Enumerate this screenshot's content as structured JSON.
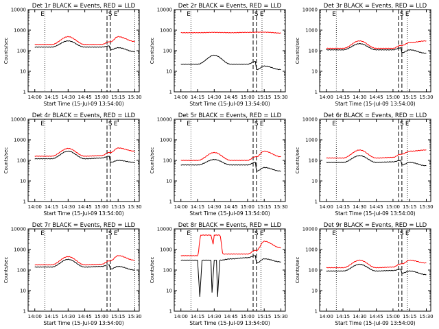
{
  "figure": {
    "xlabel": "Start Time (15-Jul-09 13:54:00)",
    "ylabel": "Counts/sec",
    "xticks": [
      "14:00",
      "14:15",
      "14:30",
      "14:45",
      "15:00",
      "15:15",
      "15:30"
    ],
    "yticks": [
      "1",
      "10",
      "100",
      "1000",
      "10000"
    ],
    "markers": [
      "E",
      "S",
      "E"
    ]
  },
  "colors": {
    "events": "#000000",
    "lld": "#ff0000"
  },
  "chart_data": [
    {
      "type": "line",
      "title": "Det 1r BLACK = Events, RED = LLD",
      "xlim": [
        "13:54",
        "15:34"
      ],
      "ylim": [
        1,
        10000
      ],
      "yscale": "log",
      "vlines_dotted": [
        "14:09",
        "15:30"
      ],
      "vlines_dashed": [
        "15:05",
        "15:08"
      ],
      "series": [
        {
          "name": "BLACK = Events",
          "points": [
            [
              "14:00",
              150
            ],
            [
              "14:15",
              150
            ],
            [
              "14:30",
              300
            ],
            [
              "14:45",
              150
            ],
            [
              "15:00",
              150
            ],
            [
              "15:07",
              170
            ],
            [
              "15:08",
              110
            ],
            [
              "15:15",
              140
            ],
            [
              "15:30",
              90
            ]
          ]
        },
        {
          "name": "RED = LLD",
          "points": [
            [
              "14:00",
              200
            ],
            [
              "14:15",
              200
            ],
            [
              "14:30",
              480
            ],
            [
              "14:45",
              200
            ],
            [
              "15:00",
              200
            ],
            [
              "15:07",
              270
            ],
            [
              "15:08",
              270
            ],
            [
              "15:15",
              480
            ],
            [
              "15:30",
              280
            ]
          ]
        }
      ]
    },
    {
      "type": "line",
      "title": "Det 2r BLACK = Events, RED = LLD",
      "xlim": [
        "13:54",
        "15:34"
      ],
      "ylim": [
        1,
        10000
      ],
      "yscale": "log",
      "vlines_dotted": [
        "14:09",
        "15:13"
      ],
      "vlines_dashed": [
        "15:05",
        "15:08"
      ],
      "series": [
        {
          "name": "BLACK = Events",
          "points": [
            [
              "14:00",
              22
            ],
            [
              "14:15",
              22
            ],
            [
              "14:30",
              60
            ],
            [
              "14:45",
              22
            ],
            [
              "15:00",
              22
            ],
            [
              "15:07",
              30
            ],
            [
              "15:08",
              12
            ],
            [
              "15:15",
              18
            ],
            [
              "15:30",
              12
            ]
          ]
        },
        {
          "name": "RED = LLD",
          "points": [
            [
              "14:00",
              750
            ],
            [
              "14:15",
              750
            ],
            [
              "14:30",
              780
            ],
            [
              "14:45",
              750
            ],
            [
              "15:00",
              780
            ],
            [
              "15:15",
              800
            ],
            [
              "15:30",
              720
            ]
          ]
        }
      ]
    },
    {
      "type": "line",
      "title": "Det 3r BLACK = Events, RED = LLD",
      "xlim": [
        "13:54",
        "15:34"
      ],
      "ylim": [
        1,
        10000
      ],
      "yscale": "log",
      "vlines_dotted": [
        "14:09",
        "15:13"
      ],
      "vlines_dashed": [
        "15:05",
        "15:08"
      ],
      "series": [
        {
          "name": "BLACK = Events",
          "points": [
            [
              "14:00",
              110
            ],
            [
              "14:15",
              110
            ],
            [
              "14:30",
              220
            ],
            [
              "14:45",
              110
            ],
            [
              "15:00",
              110
            ],
            [
              "15:07",
              140
            ],
            [
              "15:08",
              80
            ],
            [
              "15:15",
              110
            ],
            [
              "15:30",
              75
            ]
          ]
        },
        {
          "name": "RED = LLD",
          "points": [
            [
              "14:00",
              130
            ],
            [
              "14:15",
              130
            ],
            [
              "14:30",
              300
            ],
            [
              "14:45",
              130
            ],
            [
              "15:00",
              130
            ],
            [
              "15:07",
              180
            ],
            [
              "15:08",
              180
            ],
            [
              "15:15",
              250
            ],
            [
              "15:30",
              300
            ]
          ]
        }
      ]
    },
    {
      "type": "line",
      "title": "Det 4r BLACK = Events, RED = LLD",
      "xlim": [
        "13:54",
        "15:34"
      ],
      "ylim": [
        1,
        10000
      ],
      "yscale": "log",
      "vlines_dotted": [
        "14:09",
        "15:30"
      ],
      "vlines_dashed": [
        "15:05",
        "15:08"
      ],
      "series": [
        {
          "name": "BLACK = Events",
          "points": [
            [
              "14:00",
              120
            ],
            [
              "14:15",
              120
            ],
            [
              "14:30",
              280
            ],
            [
              "14:45",
              120
            ],
            [
              "15:00",
              130
            ],
            [
              "15:07",
              160
            ],
            [
              "15:08",
              80
            ],
            [
              "15:15",
              100
            ],
            [
              "15:30",
              80
            ]
          ]
        },
        {
          "name": "RED = LLD",
          "points": [
            [
              "14:00",
              160
            ],
            [
              "14:15",
              160
            ],
            [
              "14:30",
              380
            ],
            [
              "14:45",
              160
            ],
            [
              "15:00",
              170
            ],
            [
              "15:07",
              240
            ],
            [
              "15:08",
              240
            ],
            [
              "15:15",
              400
            ],
            [
              "15:30",
              280
            ]
          ]
        }
      ]
    },
    {
      "type": "line",
      "title": "Det 5r BLACK = Events, RED = LLD",
      "xlim": [
        "13:54",
        "15:34"
      ],
      "ylim": [
        1,
        10000
      ],
      "yscale": "log",
      "vlines_dotted": [
        "14:09",
        "15:12"
      ],
      "vlines_dashed": [
        "15:05",
        "15:08"
      ],
      "series": [
        {
          "name": "BLACK = Events",
          "points": [
            [
              "14:00",
              60
            ],
            [
              "14:15",
              60
            ],
            [
              "14:30",
              110
            ],
            [
              "14:45",
              60
            ],
            [
              "15:00",
              60
            ],
            [
              "15:07",
              80
            ],
            [
              "15:08",
              30
            ],
            [
              "15:15",
              45
            ],
            [
              "15:30",
              30
            ]
          ]
        },
        {
          "name": "RED = LLD",
          "points": [
            [
              "14:00",
              100
            ],
            [
              "14:15",
              100
            ],
            [
              "14:30",
              240
            ],
            [
              "14:45",
              100
            ],
            [
              "15:00",
              100
            ],
            [
              "15:07",
              150
            ],
            [
              "15:08",
              150
            ],
            [
              "15:15",
              280
            ],
            [
              "15:30",
              150
            ]
          ]
        }
      ]
    },
    {
      "type": "line",
      "title": "Det 6r BLACK = Events, RED = LLD",
      "xlim": [
        "13:54",
        "15:34"
      ],
      "ylim": [
        1,
        10000
      ],
      "yscale": "log",
      "vlines_dotted": [
        "14:09",
        "15:13"
      ],
      "vlines_dashed": [
        "15:05",
        "15:08"
      ],
      "series": [
        {
          "name": "BLACK = Events",
          "points": [
            [
              "14:00",
              80
            ],
            [
              "14:15",
              80
            ],
            [
              "14:30",
              170
            ],
            [
              "14:45",
              80
            ],
            [
              "15:00",
              85
            ],
            [
              "15:07",
              100
            ],
            [
              "15:08",
              60
            ],
            [
              "15:15",
              80
            ],
            [
              "15:30",
              55
            ]
          ]
        },
        {
          "name": "RED = LLD",
          "points": [
            [
              "14:00",
              130
            ],
            [
              "14:15",
              130
            ],
            [
              "14:30",
              320
            ],
            [
              "14:45",
              130
            ],
            [
              "15:00",
              140
            ],
            [
              "15:07",
              200
            ],
            [
              "15:08",
              200
            ],
            [
              "15:15",
              280
            ],
            [
              "15:30",
              320
            ]
          ]
        }
      ]
    },
    {
      "type": "line",
      "title": "Det 7r BLACK = Events, RED = LLD",
      "xlim": [
        "13:54",
        "15:34"
      ],
      "ylim": [
        1,
        10000
      ],
      "yscale": "log",
      "vlines_dotted": [
        "14:09",
        "15:30"
      ],
      "vlines_dashed": [
        "15:05",
        "15:08"
      ],
      "series": [
        {
          "name": "BLACK = Events",
          "points": [
            [
              "14:00",
              140
            ],
            [
              "14:15",
              140
            ],
            [
              "14:30",
              330
            ],
            [
              "14:45",
              140
            ],
            [
              "15:00",
              150
            ],
            [
              "15:07",
              180
            ],
            [
              "15:08",
              110
            ],
            [
              "15:15",
              150
            ],
            [
              "15:30",
              100
            ]
          ]
        },
        {
          "name": "RED = LLD",
          "points": [
            [
              "14:00",
              180
            ],
            [
              "14:15",
              180
            ],
            [
              "14:30",
              450
            ],
            [
              "14:45",
              180
            ],
            [
              "15:00",
              190
            ],
            [
              "15:07",
              280
            ],
            [
              "15:08",
              280
            ],
            [
              "15:15",
              500
            ],
            [
              "15:30",
              300
            ]
          ]
        }
      ]
    },
    {
      "type": "line",
      "title": "Det 8r BLACK = Events, RED = LLD",
      "xlim": [
        "13:54",
        "15:34"
      ],
      "ylim": [
        1,
        10000
      ],
      "yscale": "log",
      "vlines_dotted": [
        "14:09",
        "15:12"
      ],
      "vlines_dashed": [
        "15:05",
        "15:08"
      ],
      "series": [
        {
          "name": "BLACK = Events",
          "points": [
            [
              "14:00",
              300
            ],
            [
              "14:15",
              300
            ],
            [
              "14:17",
              5
            ],
            [
              "14:19",
              300
            ],
            [
              "14:27",
              300
            ],
            [
              "14:28",
              8
            ],
            [
              "14:30",
              300
            ],
            [
              "14:32",
              300
            ],
            [
              "14:33",
              5
            ],
            [
              "14:35",
              300
            ],
            [
              "14:45",
              350
            ],
            [
              "15:00",
              400
            ],
            [
              "15:07",
              500
            ],
            [
              "15:08",
              220
            ],
            [
              "15:15",
              350
            ],
            [
              "15:30",
              250
            ]
          ]
        },
        {
          "name": "RED = LLD",
          "points": [
            [
              "14:00",
              500
            ],
            [
              "14:15",
              500
            ],
            [
              "14:18",
              5000
            ],
            [
              "14:27",
              5000
            ],
            [
              "14:29",
              1800
            ],
            [
              "14:30",
              5000
            ],
            [
              "14:35",
              5000
            ],
            [
              "14:38",
              600
            ],
            [
              "14:45",
              600
            ],
            [
              "15:00",
              600
            ],
            [
              "15:07",
              900
            ],
            [
              "15:08",
              900
            ],
            [
              "15:15",
              2500
            ],
            [
              "15:30",
              1200
            ]
          ]
        }
      ]
    },
    {
      "type": "line",
      "title": "Det 9r BLACK = Events, RED = LLD",
      "xlim": [
        "13:54",
        "15:34"
      ],
      "ylim": [
        1,
        10000
      ],
      "yscale": "log",
      "vlines_dotted": [
        "14:09",
        "15:13"
      ],
      "vlines_dashed": [
        "15:05",
        "15:08"
      ],
      "series": [
        {
          "name": "BLACK = Events",
          "points": [
            [
              "14:00",
              90
            ],
            [
              "14:15",
              90
            ],
            [
              "14:30",
              190
            ],
            [
              "14:45",
              90
            ],
            [
              "15:00",
              95
            ],
            [
              "15:07",
              110
            ],
            [
              "15:08",
              70
            ],
            [
              "15:15",
              90
            ],
            [
              "15:30",
              60
            ]
          ]
        },
        {
          "name": "RED = LLD",
          "points": [
            [
              "14:00",
              130
            ],
            [
              "14:15",
              130
            ],
            [
              "14:30",
              300
            ],
            [
              "14:45",
              130
            ],
            [
              "15:00",
              140
            ],
            [
              "15:07",
              200
            ],
            [
              "15:08",
              200
            ],
            [
              "15:15",
              300
            ],
            [
              "15:30",
              220
            ]
          ]
        }
      ]
    }
  ]
}
